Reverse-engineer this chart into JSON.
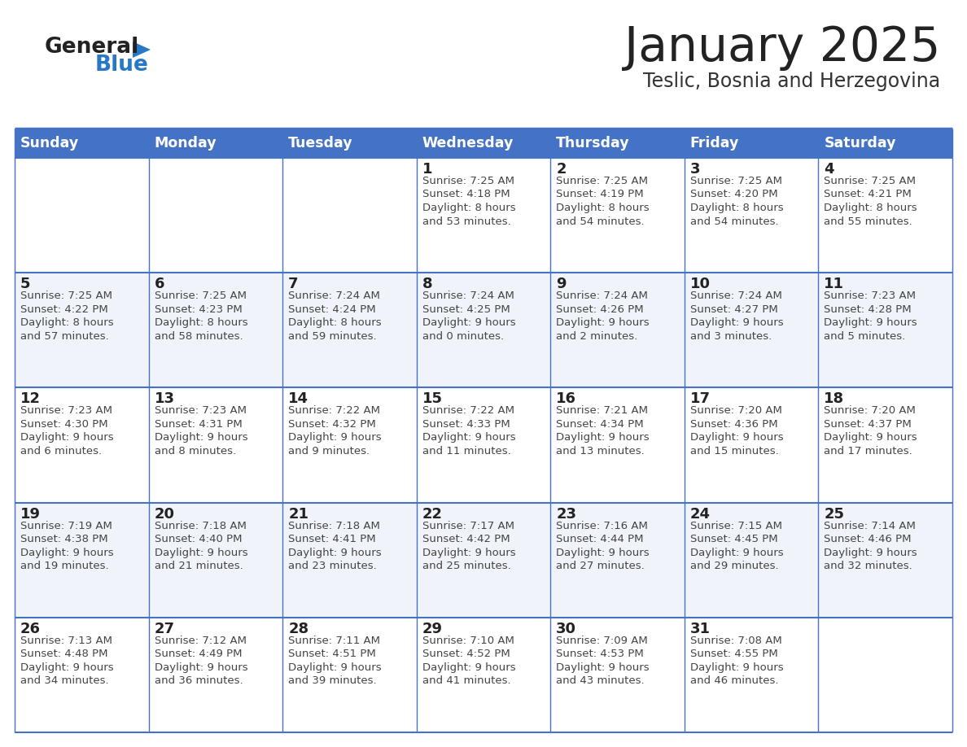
{
  "title": "January 2025",
  "subtitle": "Teslic, Bosnia and Herzegovina",
  "header_bg_color": "#4472C4",
  "header_text_color": "#FFFFFF",
  "cell_bg_color_even": "#FFFFFF",
  "cell_bg_color_odd": "#F0F4FA",
  "border_color": "#4472C4",
  "grid_line_color": "#4472C4",
  "day_number_color": "#222222",
  "cell_text_color": "#444444",
  "title_color": "#222222",
  "subtitle_color": "#333333",
  "logo_general_color": "#222222",
  "logo_blue_color": "#2878C8",
  "logo_triangle_color": "#2878C8",
  "days_of_week": [
    "Sunday",
    "Monday",
    "Tuesday",
    "Wednesday",
    "Thursday",
    "Friday",
    "Saturday"
  ],
  "weeks": [
    [
      {
        "day": "",
        "sunrise": "",
        "sunset": "",
        "daylight": ""
      },
      {
        "day": "",
        "sunrise": "",
        "sunset": "",
        "daylight": ""
      },
      {
        "day": "",
        "sunrise": "",
        "sunset": "",
        "daylight": ""
      },
      {
        "day": "1",
        "sunrise": "7:25 AM",
        "sunset": "4:18 PM",
        "daylight": "8 hours and 53 minutes."
      },
      {
        "day": "2",
        "sunrise": "7:25 AM",
        "sunset": "4:19 PM",
        "daylight": "8 hours and 54 minutes."
      },
      {
        "day": "3",
        "sunrise": "7:25 AM",
        "sunset": "4:20 PM",
        "daylight": "8 hours and 54 minutes."
      },
      {
        "day": "4",
        "sunrise": "7:25 AM",
        "sunset": "4:21 PM",
        "daylight": "8 hours and 55 minutes."
      }
    ],
    [
      {
        "day": "5",
        "sunrise": "7:25 AM",
        "sunset": "4:22 PM",
        "daylight": "8 hours and 57 minutes."
      },
      {
        "day": "6",
        "sunrise": "7:25 AM",
        "sunset": "4:23 PM",
        "daylight": "8 hours and 58 minutes."
      },
      {
        "day": "7",
        "sunrise": "7:24 AM",
        "sunset": "4:24 PM",
        "daylight": "8 hours and 59 minutes."
      },
      {
        "day": "8",
        "sunrise": "7:24 AM",
        "sunset": "4:25 PM",
        "daylight": "9 hours and 0 minutes."
      },
      {
        "day": "9",
        "sunrise": "7:24 AM",
        "sunset": "4:26 PM",
        "daylight": "9 hours and 2 minutes."
      },
      {
        "day": "10",
        "sunrise": "7:24 AM",
        "sunset": "4:27 PM",
        "daylight": "9 hours and 3 minutes."
      },
      {
        "day": "11",
        "sunrise": "7:23 AM",
        "sunset": "4:28 PM",
        "daylight": "9 hours and 5 minutes."
      }
    ],
    [
      {
        "day": "12",
        "sunrise": "7:23 AM",
        "sunset": "4:30 PM",
        "daylight": "9 hours and 6 minutes."
      },
      {
        "day": "13",
        "sunrise": "7:23 AM",
        "sunset": "4:31 PM",
        "daylight": "9 hours and 8 minutes."
      },
      {
        "day": "14",
        "sunrise": "7:22 AM",
        "sunset": "4:32 PM",
        "daylight": "9 hours and 9 minutes."
      },
      {
        "day": "15",
        "sunrise": "7:22 AM",
        "sunset": "4:33 PM",
        "daylight": "9 hours and 11 minutes."
      },
      {
        "day": "16",
        "sunrise": "7:21 AM",
        "sunset": "4:34 PM",
        "daylight": "9 hours and 13 minutes."
      },
      {
        "day": "17",
        "sunrise": "7:20 AM",
        "sunset": "4:36 PM",
        "daylight": "9 hours and 15 minutes."
      },
      {
        "day": "18",
        "sunrise": "7:20 AM",
        "sunset": "4:37 PM",
        "daylight": "9 hours and 17 minutes."
      }
    ],
    [
      {
        "day": "19",
        "sunrise": "7:19 AM",
        "sunset": "4:38 PM",
        "daylight": "9 hours and 19 minutes."
      },
      {
        "day": "20",
        "sunrise": "7:18 AM",
        "sunset": "4:40 PM",
        "daylight": "9 hours and 21 minutes."
      },
      {
        "day": "21",
        "sunrise": "7:18 AM",
        "sunset": "4:41 PM",
        "daylight": "9 hours and 23 minutes."
      },
      {
        "day": "22",
        "sunrise": "7:17 AM",
        "sunset": "4:42 PM",
        "daylight": "9 hours and 25 minutes."
      },
      {
        "day": "23",
        "sunrise": "7:16 AM",
        "sunset": "4:44 PM",
        "daylight": "9 hours and 27 minutes."
      },
      {
        "day": "24",
        "sunrise": "7:15 AM",
        "sunset": "4:45 PM",
        "daylight": "9 hours and 29 minutes."
      },
      {
        "day": "25",
        "sunrise": "7:14 AM",
        "sunset": "4:46 PM",
        "daylight": "9 hours and 32 minutes."
      }
    ],
    [
      {
        "day": "26",
        "sunrise": "7:13 AM",
        "sunset": "4:48 PM",
        "daylight": "9 hours and 34 minutes."
      },
      {
        "day": "27",
        "sunrise": "7:12 AM",
        "sunset": "4:49 PM",
        "daylight": "9 hours and 36 minutes."
      },
      {
        "day": "28",
        "sunrise": "7:11 AM",
        "sunset": "4:51 PM",
        "daylight": "9 hours and 39 minutes."
      },
      {
        "day": "29",
        "sunrise": "7:10 AM",
        "sunset": "4:52 PM",
        "daylight": "9 hours and 41 minutes."
      },
      {
        "day": "30",
        "sunrise": "7:09 AM",
        "sunset": "4:53 PM",
        "daylight": "9 hours and 43 minutes."
      },
      {
        "day": "31",
        "sunrise": "7:08 AM",
        "sunset": "4:55 PM",
        "daylight": "9 hours and 46 minutes."
      },
      {
        "day": "",
        "sunrise": "",
        "sunset": "",
        "daylight": ""
      }
    ]
  ]
}
